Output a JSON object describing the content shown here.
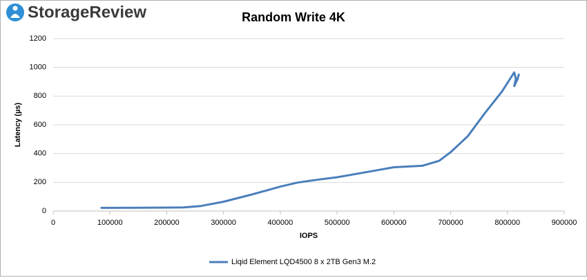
{
  "logo": "StorageReview",
  "chart_data": {
    "type": "line",
    "title": "Random Write 4K",
    "x_label": "IOPS",
    "y_label": "Latency (µs)",
    "x": [
      85000,
      100000,
      150000,
      200000,
      230000,
      260000,
      300000,
      350000,
      400000,
      430000,
      460000,
      500000,
      550000,
      600000,
      650000,
      680000,
      700000,
      730000,
      760000,
      790000,
      812000,
      815000,
      812000,
      818000,
      820000
    ],
    "series": [
      {
        "name": "Liqid Element LQD4500 8 x 2TB Gen3 M.2",
        "color": "#4a7ebb",
        "values": [
          22,
          22,
          23,
          24,
          25,
          35,
          65,
          115,
          170,
          198,
          215,
          235,
          270,
          305,
          315,
          350,
          410,
          520,
          680,
          830,
          965,
          920,
          870,
          920,
          950
        ]
      }
    ],
    "xlim": [
      0,
      900000
    ],
    "xticks": [
      0,
      100000,
      200000,
      300000,
      400000,
      500000,
      600000,
      700000,
      800000,
      900000
    ],
    "ylim": [
      0,
      1200
    ],
    "yticks": [
      0,
      200,
      400,
      600,
      800,
      1000,
      1200
    ],
    "grid": true,
    "legend": "bottom"
  }
}
